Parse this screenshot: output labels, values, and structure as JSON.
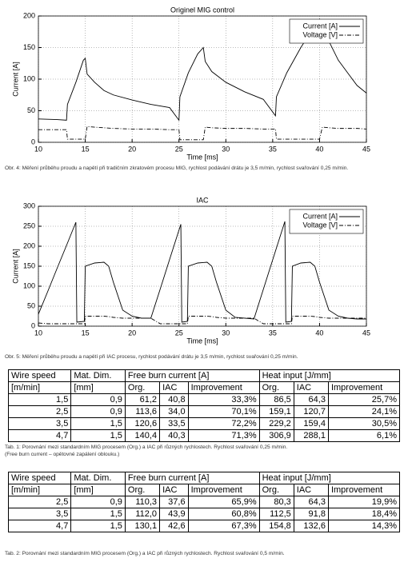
{
  "chart_data": [
    {
      "type": "line",
      "title": "Originel MIG control",
      "xlabel": "Time [ms]",
      "ylabel": "Current [A]",
      "caption": "Obr. 4: Měření průběhu proudu a napětí při tradičním zkratovém procesu MIG, rychlost podávání drátu je 3,5 m/min, rychlost svařování 0,25 m/min.",
      "x": [
        10,
        12,
        13,
        13.1,
        14,
        14.8,
        15,
        15.2,
        16,
        17,
        18,
        20,
        22,
        24,
        25,
        25.1,
        26,
        27,
        27.6,
        27.8,
        28.5,
        30,
        32,
        34,
        35.3,
        35.4,
        36.5,
        38,
        39.5,
        40,
        40.3,
        41,
        42,
        43,
        44,
        45
      ],
      "series": [
        {
          "name": "Current [A]",
          "color": "#000000",
          "dash": "solid",
          "values": [
            37,
            36,
            35,
            60,
            95,
            130,
            133,
            108,
            95,
            82,
            75,
            67,
            60,
            55,
            35,
            72,
            110,
            140,
            150,
            128,
            112,
            95,
            80,
            68,
            42,
            72,
            110,
            150,
            185,
            195,
            175,
            160,
            130,
            110,
            90,
            78
          ]
        },
        {
          "name": "Voltage [V]",
          "color": "#000000",
          "dash": "dashdot",
          "values": [
            20,
            20,
            20,
            5,
            5,
            5,
            5,
            25,
            24,
            23,
            22,
            21,
            21,
            20,
            20,
            4,
            4,
            4,
            4,
            24,
            23,
            22,
            22,
            21,
            21,
            5,
            5,
            5,
            5,
            5,
            24,
            23,
            22,
            22,
            22,
            21
          ]
        }
      ],
      "xlim": [
        10,
        45
      ],
      "ylim": [
        0,
        200
      ],
      "xticks": [
        10,
        15,
        20,
        25,
        30,
        35,
        40,
        45
      ],
      "yticks": [
        0,
        50,
        100,
        150,
        200
      ],
      "grid": true,
      "legend": "upper right"
    },
    {
      "type": "line",
      "title": "IAC",
      "xlabel": "Time [ms]",
      "ylabel": "Current [A]",
      "caption": "Obr. 5: Měření průběhu proudu a napětí při IAC procesu, rychlost podávání drátu je 3,5 m/min, rychlost svařování 0,25 m/min.",
      "x": [
        10,
        11,
        12,
        13,
        14,
        14.1,
        14.9,
        15,
        16,
        17,
        17.5,
        18,
        19,
        20,
        21,
        22,
        23,
        24,
        25.2,
        25.3,
        25.9,
        26,
        27,
        28,
        28.5,
        29,
        30,
        31,
        33,
        34,
        35,
        36.3,
        36.4,
        37,
        37.1,
        38,
        39,
        39.5,
        40,
        41,
        42,
        43,
        44,
        45
      ],
      "series": [
        {
          "name": "Current [A]",
          "color": "#000000",
          "dash": "solid",
          "values": [
            30,
            87,
            145,
            202,
            260,
            10,
            12,
            150,
            158,
            160,
            150,
            110,
            40,
            25,
            20,
            20,
            93,
            167,
            255,
            10,
            12,
            150,
            158,
            160,
            150,
            110,
            40,
            22,
            18,
            92,
            166,
            262,
            10,
            12,
            150,
            158,
            160,
            150,
            110,
            40,
            25,
            20,
            18,
            18
          ]
        },
        {
          "name": "Voltage [V]",
          "color": "#000000",
          "dash": "dashdot",
          "values": [
            8,
            6,
            6,
            6,
            6,
            6,
            6,
            25,
            25,
            25,
            24,
            22,
            20,
            20,
            20,
            20,
            6,
            6,
            6,
            6,
            6,
            25,
            25,
            25,
            24,
            22,
            20,
            20,
            20,
            6,
            6,
            6,
            6,
            6,
            25,
            25,
            25,
            24,
            22,
            20,
            20,
            20,
            20,
            20
          ]
        }
      ],
      "xlim": [
        10,
        45
      ],
      "ylim": [
        0,
        300
      ],
      "xticks": [
        10,
        15,
        20,
        25,
        30,
        35,
        40,
        45
      ],
      "yticks": [
        0,
        50,
        100,
        150,
        200,
        250,
        300
      ],
      "grid": true,
      "legend": "upper right"
    }
  ],
  "tables": [
    {
      "header_groups": [
        "Wire speed",
        "Mat. Dim.",
        "Free burn current [A]",
        "Heat input [J/mm]"
      ],
      "header_units": [
        "[m/min]",
        "[mm]",
        "Org.",
        "IAC",
        "Improvement",
        "Org.",
        "IAC",
        "Improvement"
      ],
      "rows": [
        [
          "1,5",
          "0,9",
          "61,2",
          "40,8",
          "33,3%",
          "86,5",
          "64,3",
          "25,7%"
        ],
        [
          "2,5",
          "0,9",
          "113,6",
          "34,0",
          "70,1%",
          "159,1",
          "120,7",
          "24,1%"
        ],
        [
          "3,5",
          "1,5",
          "120,6",
          "33,5",
          "72,2%",
          "229,2",
          "159,4",
          "30,5%"
        ],
        [
          "4,7",
          "1,5",
          "140,4",
          "40,3",
          "71,3%",
          "306,9",
          "288,1",
          "6,1%"
        ]
      ],
      "caption": [
        "Tab. 1: Porovnání mezi standardním MIG procesem (Org.) a IAC při různých rychlostech. Rychlost svařování 0,25 m/min.",
        "(Free burn current – opětovné zapálení oblouku.)"
      ]
    },
    {
      "header_groups": [
        "Wire speed",
        "Mat. Dim.",
        "Free burn current [A]",
        "Heat input [J/mm]"
      ],
      "header_units": [
        "[m/min]",
        "[mm]",
        "Org.",
        "IAC",
        "Improvement",
        "Org.",
        "IAC",
        "Improvement"
      ],
      "rows": [
        [
          "2,5",
          "0,9",
          "110,3",
          "37,6",
          "65,9%",
          "80,3",
          "64,3",
          "19,9%"
        ],
        [
          "3,5",
          "1,5",
          "112,0",
          "43,9",
          "60,8%",
          "112,5",
          "91,8",
          "18,4%"
        ],
        [
          "4,7",
          "1,5",
          "130,1",
          "42,6",
          "67,3%",
          "154,8",
          "132,6",
          "14,3%"
        ]
      ],
      "caption": [
        "Tab. 2: Porovnání mezi standardním MIG procesem (Org.) a IAC při různých rychlostech. Rychlost svařování 0,5 m/min."
      ]
    }
  ]
}
